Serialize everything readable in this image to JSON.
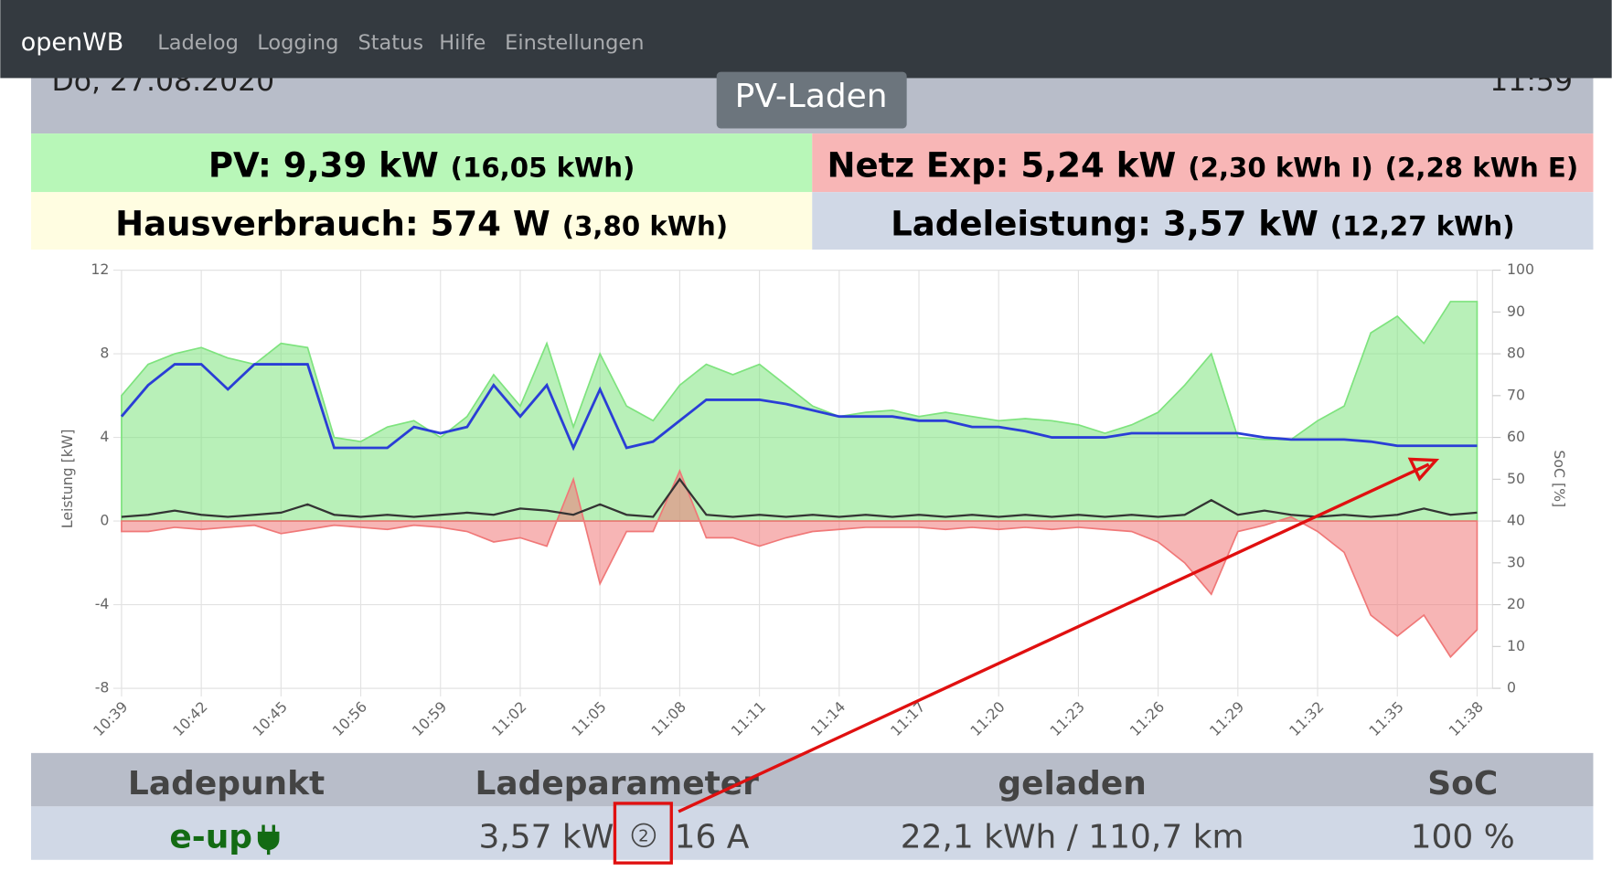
{
  "nav": {
    "brand": "openWB",
    "links": [
      "Ladelog",
      "Logging",
      "Status",
      "Hilfe",
      "Einstellungen"
    ]
  },
  "header": {
    "date": "Do, 27.08.2020",
    "time": "11:59",
    "mode": "PV-Laden"
  },
  "tiles": [
    {
      "main": "PV: 9,39 kW",
      "extra": [
        "(16,05 kWh)"
      ]
    },
    {
      "main": "Netz Exp: 5,24 kW",
      "extra": [
        "(2,30 kWh I)",
        "(2,28 kWh E)"
      ]
    },
    {
      "main": "Hausverbrauch: 574 W",
      "extra": [
        "(3,80 kWh)"
      ]
    },
    {
      "main": "Ladeleistung: 3,57 kW",
      "extra": [
        "(12,27 kWh)"
      ]
    }
  ],
  "chart_data": {
    "type": "line",
    "y_label": "Leistung [kW]",
    "y2_label": "SoC [%]",
    "categories": [
      "10:39",
      null,
      null,
      "10:42",
      null,
      null,
      "10:45",
      null,
      null,
      "10:56",
      null,
      null,
      "10:59",
      null,
      null,
      "11:02",
      null,
      null,
      "11:05",
      null,
      null,
      "11:08",
      null,
      null,
      "11:11",
      null,
      null,
      "11:14",
      null,
      null,
      "11:17",
      null,
      null,
      "11:20",
      null,
      null,
      "11:23",
      null,
      null,
      "11:26",
      null,
      null,
      "11:29",
      null,
      null,
      "11:32",
      null,
      null,
      "11:35",
      null,
      null,
      "11:38"
    ],
    "ylim": [
      -8,
      12
    ],
    "yticks": [
      -8,
      -4,
      0,
      4,
      8,
      12
    ],
    "y2lim": [
      0,
      100
    ],
    "y2ticks": [
      0,
      10,
      20,
      30,
      40,
      50,
      60,
      70,
      80,
      90,
      100
    ],
    "grid": true,
    "series": [
      {
        "color": "#7ee37e",
        "fill": true,
        "values": [
          6,
          7.5,
          8,
          8.3,
          7.8,
          7.5,
          8.5,
          8.3,
          4,
          3.8,
          4.5,
          4.8,
          4,
          5,
          7,
          5.5,
          8.5,
          4.5,
          8,
          5.5,
          4.8,
          6.5,
          7.5,
          7,
          7.5,
          6.5,
          5.5,
          5,
          5.2,
          5.3,
          5,
          5.2,
          5,
          4.8,
          4.9,
          4.8,
          4.6,
          4.2,
          4.6,
          5.2,
          6.5,
          8,
          4,
          3.9,
          3.9,
          4.8,
          5.5,
          9,
          9.8,
          8.5,
          10.5,
          10.5
        ]
      },
      {
        "color": "#f07878",
        "fill": true,
        "values": [
          -0.5,
          -0.5,
          -0.3,
          -0.4,
          -0.3,
          -0.2,
          -0.6,
          -0.4,
          -0.2,
          -0.3,
          -0.4,
          -0.2,
          -0.3,
          -0.5,
          -1,
          -0.8,
          -1.2,
          2,
          -3,
          -0.5,
          -0.5,
          2.4,
          -0.8,
          -0.8,
          -1.2,
          -0.8,
          -0.5,
          -0.4,
          -0.3,
          -0.3,
          -0.3,
          -0.4,
          -0.3,
          -0.4,
          -0.3,
          -0.4,
          -0.3,
          -0.4,
          -0.5,
          -1,
          -2,
          -3.5,
          -0.5,
          -0.2,
          0.2,
          -0.5,
          -1.5,
          -4.5,
          -5.5,
          -4.5,
          -6.5,
          -5.2
        ]
      },
      {
        "color": "#333333",
        "fill": false,
        "values": [
          0.2,
          0.3,
          0.5,
          0.3,
          0.2,
          0.3,
          0.4,
          0.8,
          0.3,
          0.2,
          0.3,
          0.2,
          0.3,
          0.4,
          0.3,
          0.6,
          0.5,
          0.3,
          0.8,
          0.3,
          0.2,
          2,
          0.3,
          0.2,
          0.3,
          0.2,
          0.3,
          0.2,
          0.3,
          0.2,
          0.3,
          0.2,
          0.3,
          0.2,
          0.3,
          0.2,
          0.3,
          0.2,
          0.3,
          0.2,
          0.3,
          1,
          0.3,
          0.5,
          0.3,
          0.2,
          0.3,
          0.2,
          0.3,
          0.6,
          0.3,
          0.4
        ]
      },
      {
        "color": "#2a3ed6",
        "fill": false,
        "values": [
          5,
          6.5,
          7.5,
          7.5,
          6.3,
          7.5,
          7.5,
          7.5,
          3.5,
          3.5,
          3.5,
          4.5,
          4.2,
          4.5,
          6.5,
          5,
          6.5,
          3.5,
          6.3,
          3.5,
          3.8,
          4.8,
          5.8,
          5.8,
          5.8,
          5.6,
          5.3,
          5,
          5,
          5,
          4.8,
          4.8,
          4.5,
          4.5,
          4.3,
          4,
          4,
          4,
          4.2,
          4.2,
          4.2,
          4.2,
          4.2,
          4,
          3.9,
          3.9,
          3.9,
          3.8,
          3.6,
          3.6,
          3.6,
          3.6
        ]
      }
    ]
  },
  "table": {
    "header": [
      "Ladepunkt",
      "Ladeparameter",
      "geladen",
      "SoC"
    ],
    "rows": [
      {
        "name": "e-up",
        "power": "3,57 kW",
        "phases": "2",
        "current": "16 A",
        "charged": "22,1 kWh / 110,7 km",
        "soc": "100 %"
      }
    ]
  }
}
